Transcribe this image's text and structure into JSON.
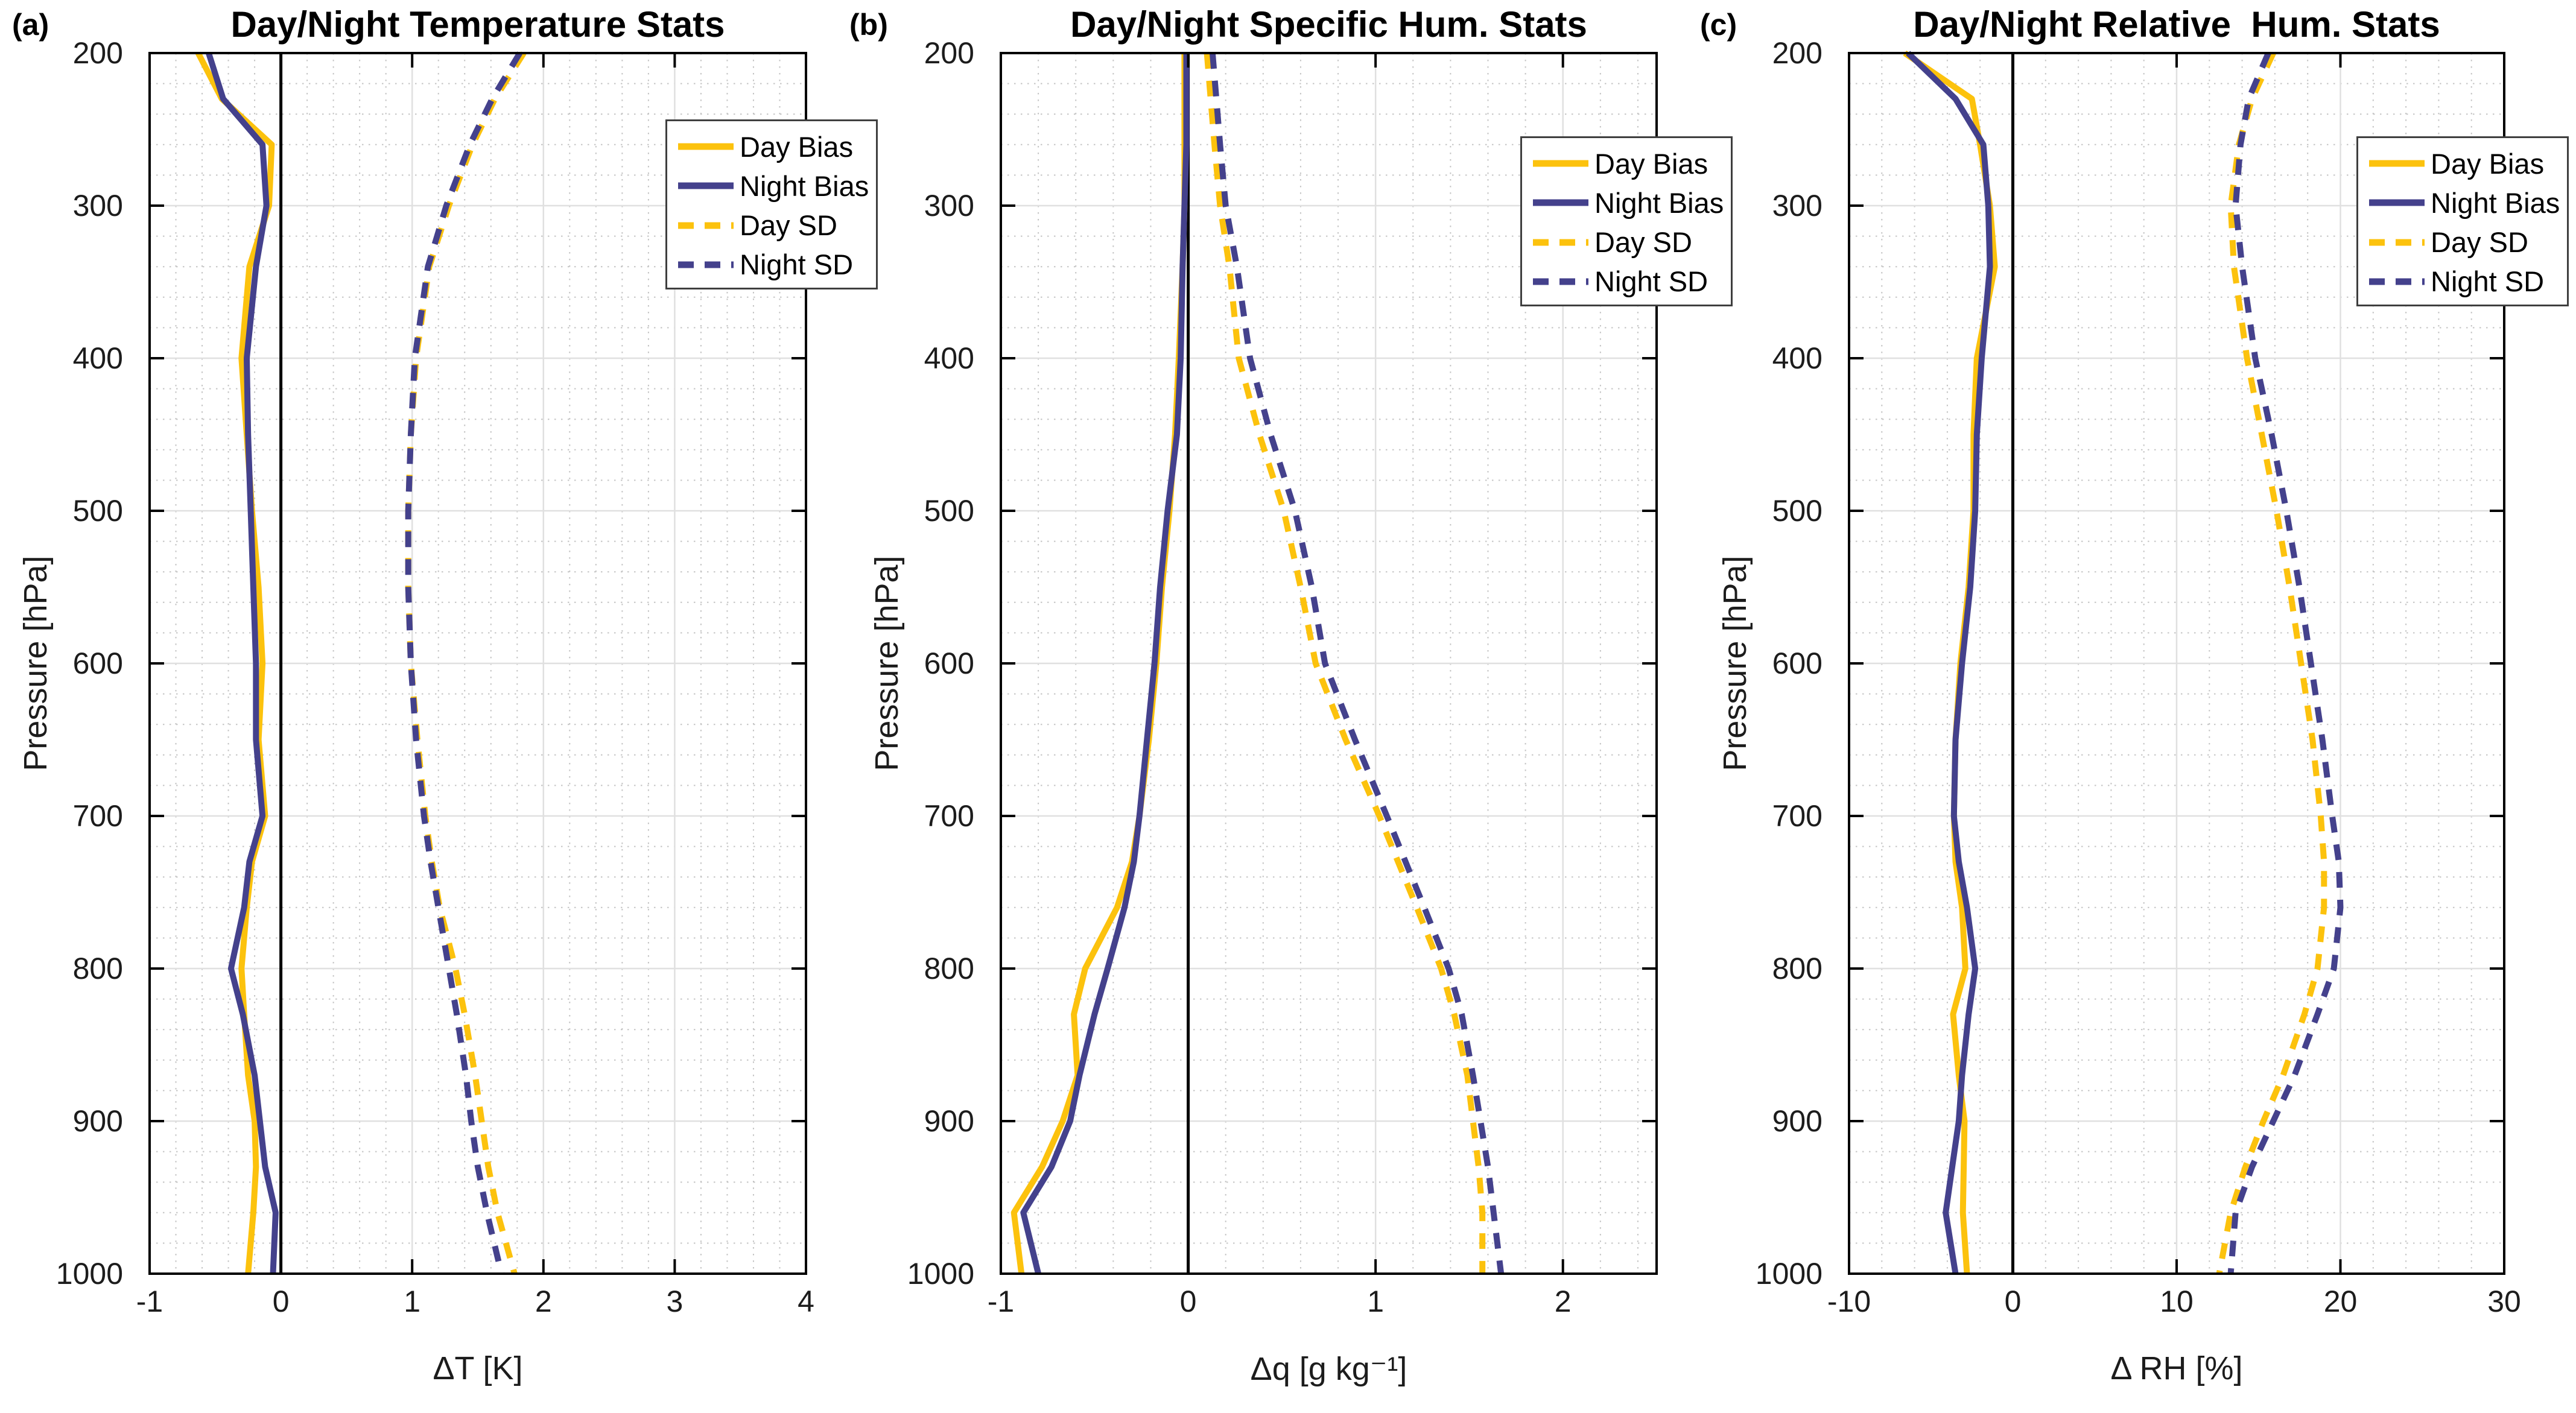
{
  "figure": {
    "background": "#ffffff"
  },
  "chart_data": {
    "type": "line",
    "description": "Three vertical-profile panels of day/night statistics versus pressure",
    "y_axis": {
      "label": "Pressure [hPa]",
      "range": [
        200,
        1000
      ],
      "inverted": true,
      "ticks": [
        200,
        300,
        400,
        500,
        600,
        700,
        800,
        900,
        1000
      ],
      "minor_step": 20,
      "grid": "on"
    },
    "pressure_levels": [
      200,
      230,
      260,
      300,
      340,
      400,
      450,
      500,
      550,
      600,
      650,
      700,
      730,
      760,
      800,
      830,
      870,
      900,
      930,
      960,
      1000
    ],
    "colors": {
      "day": "#FCC20D",
      "night": "#44418C",
      "zero_line": "#000000",
      "grid_major": "#E0E0E0",
      "grid_minor": "#C4C4C4",
      "axis_box": "#000000",
      "tick_text": "#1c1c1c"
    },
    "legend": [
      {
        "label": "Day Bias",
        "series": "day_bias",
        "color": "day",
        "style": "solid"
      },
      {
        "label": "Night Bias",
        "series": "night_bias",
        "color": "night",
        "style": "solid"
      },
      {
        "label": "Day SD",
        "series": "day_sd",
        "color": "day",
        "style": "dashed"
      },
      {
        "label": "Night SD",
        "series": "night_sd",
        "color": "night",
        "style": "dashed"
      }
    ],
    "panels": [
      {
        "label": "(a)",
        "title": "Day/Night Temperature Stats",
        "xlabel": "ΔT [K]",
        "xlim": [
          -1,
          4
        ],
        "xticks": [
          -1,
          0,
          1,
          2,
          3,
          4
        ],
        "x_minor_step": 0.2,
        "series": {
          "day_bias": [
            -0.63,
            -0.45,
            -0.07,
            -0.09,
            -0.24,
            -0.3,
            -0.26,
            -0.22,
            -0.17,
            -0.14,
            -0.17,
            -0.12,
            -0.22,
            -0.26,
            -0.3,
            -0.28,
            -0.25,
            -0.2,
            -0.19,
            -0.21,
            -0.25
          ],
          "night_bias": [
            -0.55,
            -0.44,
            -0.14,
            -0.11,
            -0.19,
            -0.26,
            -0.25,
            -0.23,
            -0.21,
            -0.19,
            -0.19,
            -0.14,
            -0.24,
            -0.28,
            -0.38,
            -0.29,
            -0.2,
            -0.16,
            -0.12,
            -0.04,
            -0.06
          ],
          "day_sd": [
            1.85,
            1.63,
            1.46,
            1.28,
            1.13,
            1.03,
            0.99,
            0.97,
            0.97,
            0.99,
            1.04,
            1.1,
            1.15,
            1.21,
            1.33,
            1.4,
            1.48,
            1.53,
            1.58,
            1.65,
            1.78
          ],
          "night_sd": [
            1.82,
            1.61,
            1.44,
            1.26,
            1.12,
            1.02,
            0.99,
            0.97,
            0.97,
            0.99,
            1.03,
            1.09,
            1.14,
            1.2,
            1.28,
            1.34,
            1.41,
            1.45,
            1.5,
            1.57,
            1.68
          ]
        }
      },
      {
        "label": "(b)",
        "title": "Day/Night Specific Hum. Stats",
        "xlabel": "Δq [g kg⁻¹]",
        "xlim": [
          -1,
          2.5
        ],
        "xticks": [
          -1,
          0,
          1,
          2
        ],
        "x_minor_step": 0.2,
        "series": {
          "day_bias": [
            -0.02,
            -0.02,
            -0.02,
            -0.02,
            -0.03,
            -0.05,
            -0.07,
            -0.1,
            -0.14,
            -0.17,
            -0.21,
            -0.26,
            -0.3,
            -0.38,
            -0.55,
            -0.61,
            -0.59,
            -0.67,
            -0.78,
            -0.93,
            -0.89
          ],
          "night_bias": [
            -0.01,
            -0.01,
            -0.01,
            -0.02,
            -0.03,
            -0.04,
            -0.06,
            -0.11,
            -0.15,
            -0.18,
            -0.22,
            -0.26,
            -0.29,
            -0.34,
            -0.43,
            -0.5,
            -0.58,
            -0.63,
            -0.73,
            -0.88,
            -0.8
          ],
          "day_sd": [
            0.1,
            0.12,
            0.14,
            0.17,
            0.22,
            0.27,
            0.38,
            0.51,
            0.6,
            0.68,
            0.84,
            1.02,
            1.12,
            1.22,
            1.35,
            1.42,
            1.49,
            1.52,
            1.55,
            1.57,
            1.57
          ],
          "night_sd": [
            0.13,
            0.15,
            0.17,
            0.2,
            0.26,
            0.33,
            0.44,
            0.57,
            0.66,
            0.73,
            0.89,
            1.06,
            1.16,
            1.26,
            1.39,
            1.46,
            1.52,
            1.56,
            1.6,
            1.63,
            1.67
          ]
        }
      },
      {
        "label": "(c)",
        "title": "Day/Night Relative  Hum. Stats",
        "xlabel": "Δ RH [%]",
        "xlim": [
          -10,
          30
        ],
        "xticks": [
          -10,
          0,
          10,
          20,
          30
        ],
        "x_minor_step": 2,
        "series": {
          "day_bias": [
            -6.6,
            -2.5,
            -2.0,
            -1.4,
            -1.1,
            -2.2,
            -2.4,
            -2.4,
            -2.7,
            -3.2,
            -3.5,
            -3.6,
            -3.5,
            -3.1,
            -2.9,
            -3.65,
            -3.3,
            -2.95,
            -3.0,
            -3.05,
            -2.8
          ],
          "night_bias": [
            -6.4,
            -3.5,
            -1.8,
            -1.5,
            -1.4,
            -1.9,
            -2.2,
            -2.3,
            -2.6,
            -3.1,
            -3.5,
            -3.6,
            -3.3,
            -2.8,
            -2.3,
            -2.7,
            -3.1,
            -3.3,
            -3.7,
            -4.1,
            -3.5
          ],
          "day_sd": [
            15.9,
            14.6,
            13.8,
            13.3,
            13.5,
            14.3,
            15.2,
            16.1,
            16.9,
            17.6,
            18.3,
            18.8,
            19.0,
            19.0,
            18.6,
            17.8,
            16.5,
            15.3,
            14.2,
            13.3,
            12.6
          ],
          "night_sd": [
            15.6,
            14.4,
            13.9,
            13.6,
            14.0,
            14.8,
            15.8,
            16.7,
            17.5,
            18.2,
            18.9,
            19.5,
            19.9,
            20.0,
            19.6,
            18.6,
            17.2,
            15.9,
            14.6,
            13.6,
            13.3
          ]
        }
      }
    ]
  }
}
